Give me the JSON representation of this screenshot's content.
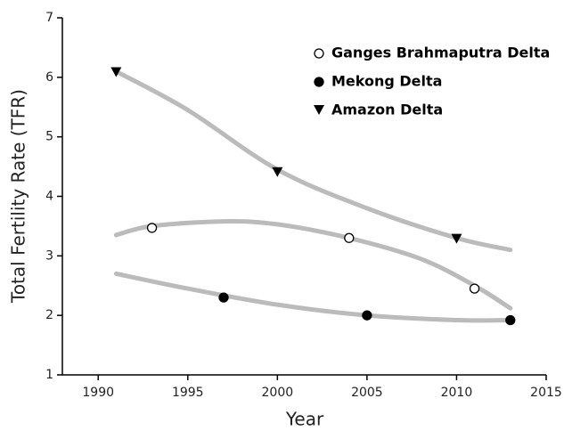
{
  "chart_data": {
    "type": "scatter",
    "x_label": "Year",
    "y_label": "Total Fertility Rate (TFR)",
    "xlim": [
      1988,
      2015
    ],
    "xticks": [
      1990,
      1995,
      2000,
      2005,
      2010,
      2015
    ],
    "ylim": [
      1,
      7
    ],
    "yticks": [
      1,
      2,
      3,
      4,
      5,
      6,
      7
    ],
    "legend": "upper right",
    "series": [
      {
        "name": "Ganges Brahmaputra Delta",
        "marker": "open-circle",
        "color": "#000000",
        "x": [
          1993,
          2004,
          2011
        ],
        "values": [
          3.47,
          3.3,
          2.45
        ],
        "fit": {
          "color": "#bbbbbb",
          "x": [
            1991,
            1993,
            1997,
            2000,
            2004,
            2008,
            2011,
            2013
          ],
          "values": [
            3.35,
            3.5,
            3.58,
            3.53,
            3.3,
            2.95,
            2.5,
            2.12
          ]
        }
      },
      {
        "name": "Mekong Delta",
        "marker": "filled-circle",
        "color": "#000000",
        "x": [
          1997,
          2005,
          2013
        ],
        "values": [
          2.3,
          2.0,
          1.92
        ],
        "fit": {
          "color": "#bbbbbb",
          "x": [
            1991,
            1995,
            2000,
            2005,
            2010,
            2013
          ],
          "values": [
            2.7,
            2.45,
            2.18,
            2.0,
            1.92,
            1.92
          ]
        }
      },
      {
        "name": "Amazon Delta",
        "marker": "triangle-down",
        "color": "#000000",
        "x": [
          1991,
          2000,
          2010
        ],
        "values": [
          6.08,
          4.4,
          3.28
        ],
        "fit": {
          "color": "#bbbbbb",
          "x": [
            1991,
            1995,
            2000,
            2005,
            2010,
            2013
          ],
          "values": [
            6.1,
            5.45,
            4.45,
            3.8,
            3.3,
            3.1
          ]
        }
      }
    ]
  }
}
